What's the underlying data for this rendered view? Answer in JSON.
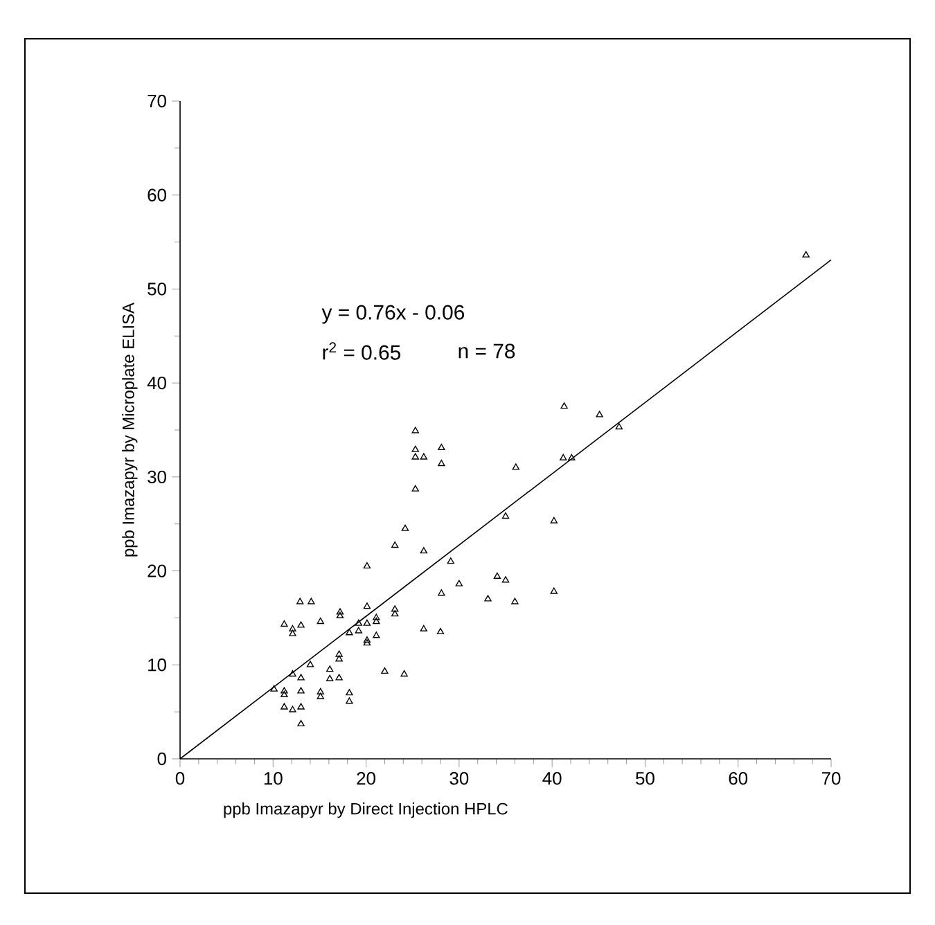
{
  "chart_data": {
    "type": "scatter",
    "xlabel": "ppb Imazapyr by Direct Injection HPLC",
    "ylabel": "ppb Imazapyr by Microplate ELISA",
    "xlim": [
      0,
      70
    ],
    "ylim": [
      0,
      70
    ],
    "xticks": [
      0,
      10,
      20,
      30,
      40,
      50,
      60,
      70
    ],
    "yticks": [
      0,
      10,
      20,
      30,
      40,
      50,
      60,
      70
    ],
    "marker": "triangle",
    "annotations": [
      "y = 0.76x - 0.06",
      "r$^{2}$ = 0.65",
      "n = 78"
    ],
    "series": [
      {
        "color": "#000000",
        "x": [
          67.3,
          41.3,
          45.1,
          47.2,
          25.3,
          25.3,
          28.1,
          25.3,
          26.2,
          28.1,
          36.1,
          41.2,
          42.1,
          25.3,
          24.2,
          35.0,
          40.2,
          23.1,
          26.2,
          29.1,
          20.1,
          34.1,
          35.0,
          30.0,
          28.1,
          40.2,
          33.1,
          36.0,
          12.9,
          14.1,
          17.2,
          17.2,
          20.1,
          23.1,
          23.1,
          21.1,
          21.1,
          11.2,
          15.1,
          19.2,
          20.1,
          12.1,
          12.1,
          13.0,
          18.2,
          19.2,
          21.1,
          26.2,
          28.0,
          20.1,
          20.1,
          14.0,
          17.1,
          17.1,
          12.1,
          16.1,
          16.1,
          17.1,
          13.0,
          22.0,
          24.1,
          10.1,
          11.2,
          11.2,
          13.0,
          15.1,
          15.1,
          18.2,
          18.2,
          11.2,
          12.1,
          13.0,
          13.0
        ],
        "values": [
          53.6,
          37.5,
          36.6,
          35.3,
          34.9,
          32.9,
          33.1,
          32.1,
          32.1,
          31.4,
          31.0,
          32.0,
          32.0,
          28.7,
          24.5,
          25.8,
          25.3,
          22.7,
          22.1,
          21.0,
          20.5,
          19.4,
          19.0,
          18.6,
          17.6,
          17.8,
          17.0,
          16.7,
          16.7,
          16.7,
          15.6,
          15.2,
          16.2,
          15.9,
          15.4,
          15.0,
          14.6,
          14.3,
          14.6,
          14.4,
          14.4,
          13.8,
          13.3,
          14.2,
          13.4,
          13.6,
          13.1,
          13.8,
          13.5,
          12.6,
          12.3,
          10.0,
          11.1,
          10.6,
          9.0,
          9.5,
          8.5,
          8.6,
          8.6,
          9.3,
          9.0,
          7.4,
          7.2,
          6.8,
          7.2,
          7.1,
          6.6,
          7.0,
          6.1,
          5.5,
          5.2,
          5.5,
          3.7
        ]
      },
      {
        "type": "line",
        "color": "#000000",
        "marker": "none",
        "line_style": "solid",
        "x": [
          0,
          70
        ],
        "values": [
          0,
          53.1
        ]
      }
    ]
  }
}
